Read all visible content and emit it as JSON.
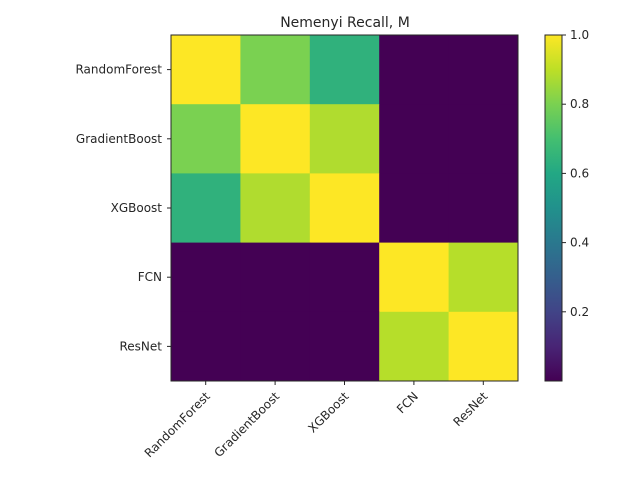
{
  "chart_data": {
    "type": "heatmap",
    "title": "Nemenyi Recall, M",
    "xlabel": "",
    "ylabel": "",
    "row_labels": [
      "RandomForest",
      "GradientBoost",
      "XGBoost",
      "FCN",
      "ResNet"
    ],
    "col_labels": [
      "RandomForest",
      "GradientBoost",
      "XGBoost",
      "FCN",
      "ResNet"
    ],
    "values": [
      [
        1.0,
        0.8,
        0.64,
        0.0,
        0.0
      ],
      [
        0.8,
        1.0,
        0.88,
        0.0,
        0.0
      ],
      [
        0.64,
        0.88,
        1.0,
        0.0,
        0.0
      ],
      [
        0.0,
        0.0,
        0.0,
        1.0,
        0.89
      ],
      [
        0.0,
        0.0,
        0.0,
        0.89,
        1.0
      ]
    ],
    "colormap": "viridis",
    "colorbar": {
      "range": [
        0.0,
        1.0
      ],
      "ticks": [
        0.2,
        0.4,
        0.6,
        0.8,
        1.0
      ],
      "tick_labels": [
        "0.2",
        "0.4",
        "0.6",
        "0.8",
        "1.0"
      ]
    },
    "grid": false
  }
}
